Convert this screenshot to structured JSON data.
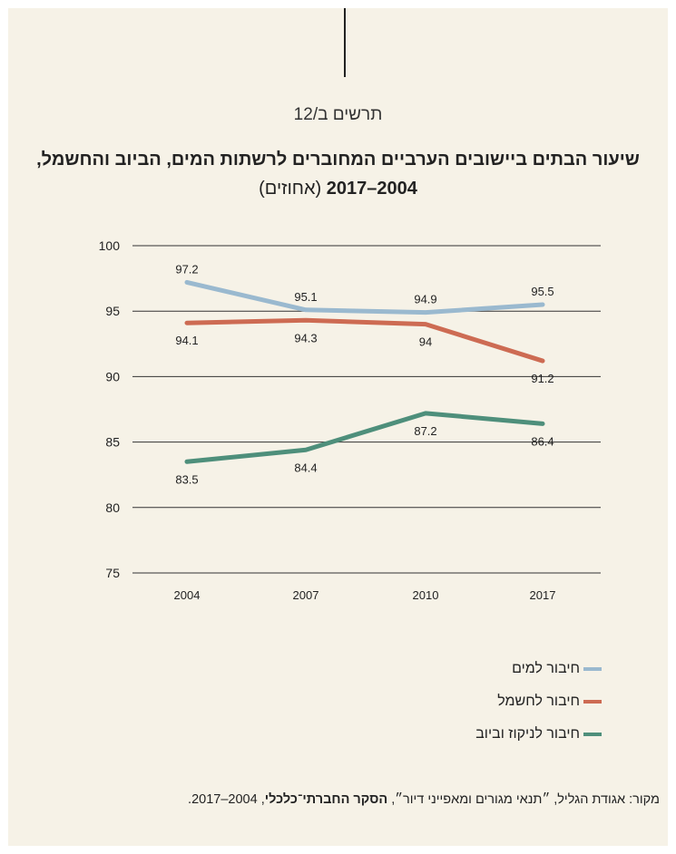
{
  "figure_label": "תרשים ב/12",
  "title_main": "שיעור הבתים ביישובים הערביים המחוברים לרשתות המים, הביוב והחשמל, 2004–2017",
  "title_unit": "(אחוזים)",
  "colors": {
    "background": "#f6f2e7",
    "water": "#9ab9cf",
    "electricity": "#cd6b53",
    "sewage": "#4e8f7b",
    "grid": "#333333"
  },
  "chart_data": {
    "type": "line",
    "categories": [
      "2004",
      "2007",
      "2010",
      "2017"
    ],
    "ylim": [
      75,
      100
    ],
    "yticks": [
      "75",
      "80",
      "85",
      "90",
      "95",
      "100"
    ],
    "grid": true,
    "legend_position": "bottom-right",
    "series": [
      {
        "name": "חיבור למים",
        "values": [
          97.2,
          95.1,
          94.9,
          95.5
        ],
        "labels": [
          "97.2",
          "95.1",
          "94.9",
          "95.5"
        ],
        "color": "#9ab9cf",
        "label_side": "above"
      },
      {
        "name": "חיבור לחשמל",
        "values": [
          94.1,
          94.3,
          94,
          91.2
        ],
        "labels": [
          "94.1",
          "94.3",
          "94",
          "91.2"
        ],
        "color": "#cd6b53",
        "label_side": "below"
      },
      {
        "name": "חיבור לניקוז וביוב",
        "values": [
          83.5,
          84.4,
          87.2,
          86.4
        ],
        "labels": [
          "83.5",
          "84.4",
          "87.2",
          "86.4"
        ],
        "color": "#4e8f7b",
        "label_side": "below"
      }
    ]
  },
  "source": {
    "prefix": "מקור: אגודת הגליל, ״תנאי מגורים ומאפייני דיור״, ",
    "bold": "הסקר החברתי־כלכלי",
    "suffix": ", 2004–2017."
  }
}
